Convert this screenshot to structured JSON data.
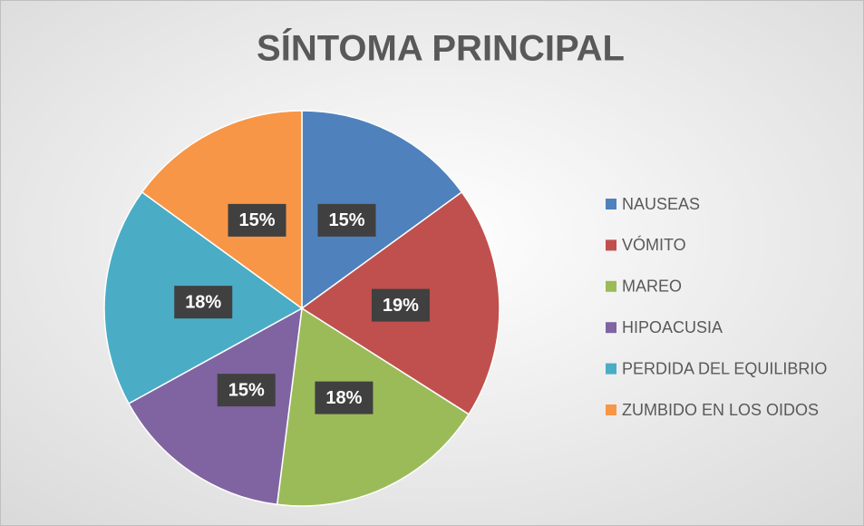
{
  "chart_data": {
    "type": "pie",
    "title": "SÍNTOMA PRINCIPAL",
    "categories": [
      "NAUSEAS",
      "VÓMITO",
      "MAREO",
      "HIPOACUSIA",
      "PERDIDA DEL EQUILIBRIO",
      "ZUMBIDO EN LOS OIDOS"
    ],
    "values": [
      15,
      19,
      18,
      15,
      18,
      15
    ],
    "value_labels": [
      "15%",
      "19%",
      "18%",
      "15%",
      "18%",
      "15%"
    ],
    "colors": [
      "#4f81bd",
      "#c0504d",
      "#9bbb59",
      "#8064a2",
      "#4bacc6",
      "#f79646"
    ],
    "legend": "right"
  }
}
